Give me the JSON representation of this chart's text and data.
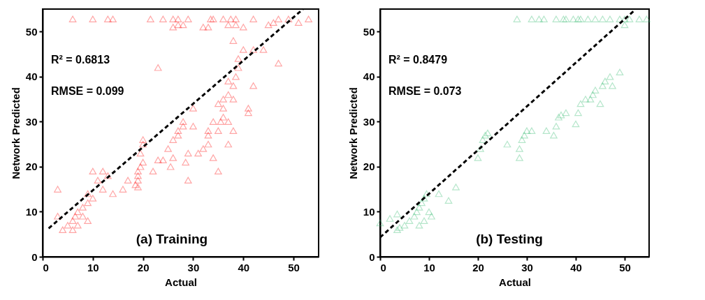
{
  "chart_data": [
    {
      "type": "scatter",
      "xlabel": "Actual",
      "ylabel": "Network Predicted",
      "xlim": [
        0,
        55
      ],
      "ylim": [
        0,
        55
      ],
      "xticks": [
        0,
        10,
        20,
        30,
        40,
        50
      ],
      "yticks": [
        0,
        10,
        20,
        30,
        40,
        50
      ],
      "grid": false,
      "marker": "triangle",
      "annotations": [
        "R² = 0.6813",
        "RMSE = 0.099",
        "(a) Training"
      ],
      "series": [
        {
          "color": "#ff0000",
          "x": [
            6,
            10,
            13,
            14,
            21.5,
            24,
            26,
            27,
            29,
            33.5,
            34,
            36,
            37.5,
            38.5,
            42,
            45,
            46,
            47,
            49,
            51,
            53,
            26,
            27,
            33,
            37,
            38.5,
            32,
            28,
            5,
            6,
            6,
            6.5,
            7,
            7,
            8,
            8,
            9,
            9,
            3,
            3,
            4,
            10,
            11,
            12,
            13,
            10,
            12,
            14,
            16,
            17,
            9,
            18.5,
            19,
            19,
            19,
            19.5,
            20,
            19.5,
            20,
            20,
            19,
            23,
            24,
            25.5,
            26,
            22,
            25,
            26,
            27,
            27,
            28,
            29,
            28.5,
            29,
            31,
            32,
            33,
            33,
            34,
            35,
            34,
            35,
            35.5,
            36,
            36,
            36,
            35,
            37,
            37,
            38,
            38,
            38,
            38.5,
            39,
            39,
            40,
            41,
            41,
            42,
            42,
            44,
            47,
            23,
            30,
            28,
            30,
            33,
            37,
            37,
            38,
            40
          ],
          "values": [
            52.8,
            52.8,
            52.8,
            52.8,
            52.8,
            52.8,
            52.8,
            52.8,
            52.8,
            52.8,
            52.8,
            52.8,
            52.8,
            52.8,
            52.8,
            51.5,
            52,
            52.8,
            52.8,
            52,
            52.8,
            51,
            51.5,
            51,
            51.5,
            51.5,
            51,
            51.5,
            7,
            6,
            8,
            9,
            7,
            10,
            9,
            11,
            8,
            12,
            9,
            15,
            6,
            13,
            17,
            19,
            18,
            19,
            15,
            14,
            15,
            17,
            14,
            16,
            17,
            18,
            19,
            20,
            21,
            23,
            25,
            26,
            15.5,
            21.5,
            21.5,
            20,
            22,
            19,
            24,
            26,
            27,
            28,
            29,
            17,
            21,
            23,
            23,
            24,
            25,
            28,
            22,
            19,
            30,
            28,
            30,
            31,
            33,
            35,
            34,
            36,
            30,
            28,
            35,
            38,
            40,
            42,
            44,
            46,
            32,
            33,
            38,
            46,
            46,
            43,
            42,
            33,
            30,
            29,
            27,
            25,
            39,
            48,
            51
          ]
        },
        {
          "type": "line",
          "color": "#000000",
          "line_style": "dashed",
          "marker": "none",
          "x": [
            1.2,
            51.9
          ],
          "values": [
            6.3,
            55
          ]
        }
      ]
    },
    {
      "type": "scatter",
      "xlabel": "Actual",
      "ylabel": "Network Predicted",
      "xlim": [
        0,
        55
      ],
      "ylim": [
        0,
        55
      ],
      "xticks": [
        0,
        10,
        20,
        30,
        40,
        50
      ],
      "yticks": [
        0,
        10,
        20,
        30,
        40,
        50
      ],
      "grid": false,
      "marker": "triangle",
      "annotations": [
        "R² = 0.8479",
        "RMSE = 0.073",
        "(b) Testing"
      ],
      "series": [
        {
          "color": "#2eb86b",
          "x": [
            28,
            31,
            32.5,
            33.5,
            36,
            37.5,
            38,
            39.5,
            40.5,
            41,
            42.5,
            44,
            45.5,
            47,
            49,
            50,
            51,
            53,
            54.5,
            50,
            0,
            2,
            3.5,
            3.5,
            4,
            5,
            6,
            7,
            7.5,
            8,
            8.5,
            9,
            9.5,
            8,
            9,
            10,
            12,
            14,
            15.5,
            10.5,
            20,
            20.5,
            21,
            21.5,
            22,
            26,
            28.5,
            28.5,
            29,
            29.5,
            30,
            31,
            34,
            35.5,
            36,
            36.5,
            37,
            38,
            40,
            40.5,
            41,
            42,
            43,
            43.5,
            44,
            45,
            45.5,
            46,
            47,
            47.5,
            49
          ],
          "values": [
            52.8,
            52.8,
            52.8,
            52.8,
            52.8,
            52.8,
            52.8,
            52.8,
            52.8,
            52.8,
            52.8,
            52.8,
            52.8,
            52.8,
            52.8,
            52.8,
            52.8,
            52.8,
            52.8,
            51.5,
            7.5,
            8.5,
            9.5,
            6,
            6.5,
            7,
            8,
            9,
            10,
            11,
            12,
            13,
            14,
            7,
            8,
            10,
            14,
            12.5,
            15.5,
            9,
            22,
            24,
            26,
            27,
            27.5,
            25,
            22,
            24,
            26,
            27,
            28,
            28,
            28,
            27,
            29,
            31,
            31.5,
            32,
            29.5,
            32,
            34,
            35,
            35,
            36,
            37,
            34,
            38,
            39,
            40,
            38,
            41
          ]
        },
        {
          "type": "line",
          "color": "#000000",
          "line_style": "dashed",
          "marker": "none",
          "x": [
            0,
            52
          ],
          "values": [
            4.3,
            54.7
          ]
        }
      ]
    }
  ]
}
